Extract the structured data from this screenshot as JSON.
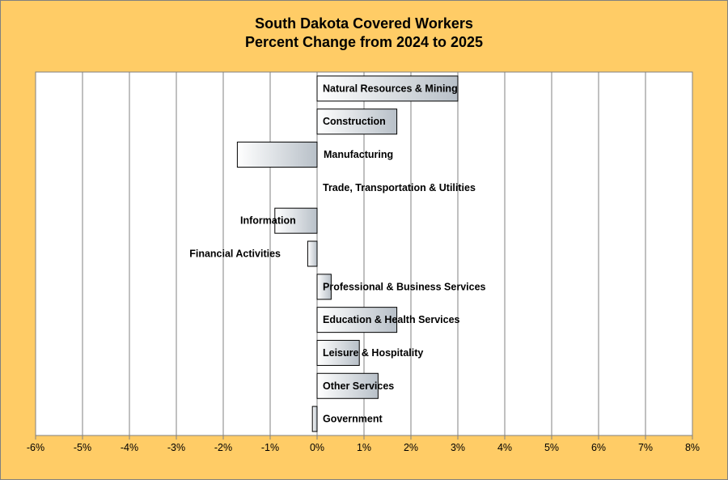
{
  "chart_data": {
    "type": "bar",
    "orientation": "horizontal",
    "title": "South Dakota Covered Workers",
    "subtitle": "Percent Change from 2024 to 2025",
    "xlabel": "",
    "ylabel": "",
    "xlim": [
      -6,
      8
    ],
    "x_ticks": [
      "-6%",
      "-5%",
      "-4%",
      "-3%",
      "-2%",
      "-1%",
      "0%",
      "1%",
      "2%",
      "3%",
      "4%",
      "5%",
      "6%",
      "7%",
      "8%"
    ],
    "grid": "vertical",
    "categories": [
      "Natural Resources & Mining",
      "Construction",
      "Manufacturing",
      "Trade, Transportation & Utilities",
      "Information",
      "Financial Activities",
      "Professional & Business Services",
      "Education & Health Services",
      "Leisure & Hospitality",
      "Other Services",
      "Government"
    ],
    "values": [
      3.0,
      1.7,
      -1.7,
      0.0,
      -0.9,
      -0.2,
      0.3,
      1.7,
      0.9,
      1.3,
      -0.1
    ],
    "colors": {
      "background": "#ffcc66",
      "plot": "#ffffff",
      "bar_light": "#ffffff",
      "bar_dark": "#b8c0c8",
      "grid": "#808080"
    }
  }
}
